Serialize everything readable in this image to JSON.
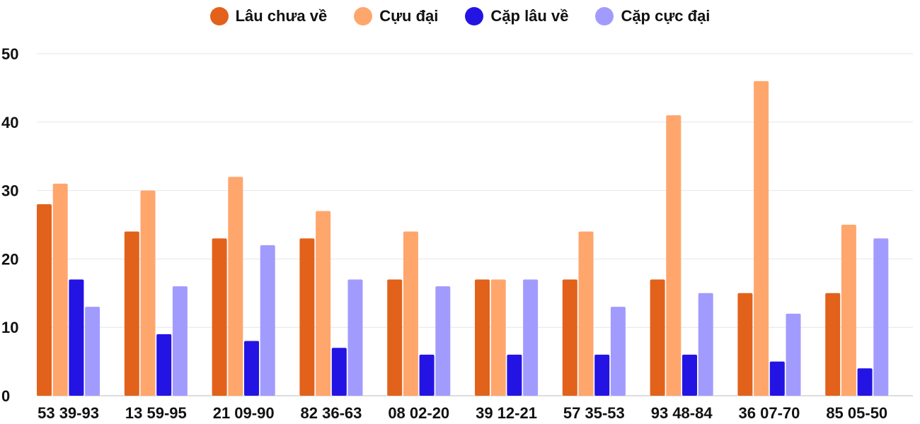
{
  "chart_data": {
    "type": "bar",
    "title": "",
    "xlabel": "",
    "ylabel": "",
    "ylim": [
      0,
      50
    ],
    "yticks": [
      0,
      10,
      20,
      30,
      40,
      50
    ],
    "grid": true,
    "legend_position": "top",
    "categories": [
      "53 39-93",
      "13 59-95",
      "21 09-90",
      "82 36-63",
      "08 02-20",
      "39 12-21",
      "57 35-53",
      "93 48-84",
      "36 07-70",
      "85 05-50"
    ],
    "series": [
      {
        "name": "Lâu chưa về",
        "color": "#E2621B",
        "values": [
          28,
          24,
          23,
          23,
          17,
          17,
          17,
          17,
          15,
          15
        ]
      },
      {
        "name": "Cựu đại",
        "color": "#FFA66D",
        "values": [
          31,
          30,
          32,
          27,
          24,
          17,
          24,
          41,
          46,
          25
        ]
      },
      {
        "name": "Cặp lâu về",
        "color": "#2414E3",
        "values": [
          17,
          9,
          8,
          7,
          6,
          6,
          6,
          6,
          5,
          4
        ]
      },
      {
        "name": "Cặp cực đại",
        "color": "#A29BFE",
        "values": [
          13,
          16,
          22,
          17,
          16,
          17,
          13,
          15,
          12,
          23
        ]
      }
    ]
  }
}
